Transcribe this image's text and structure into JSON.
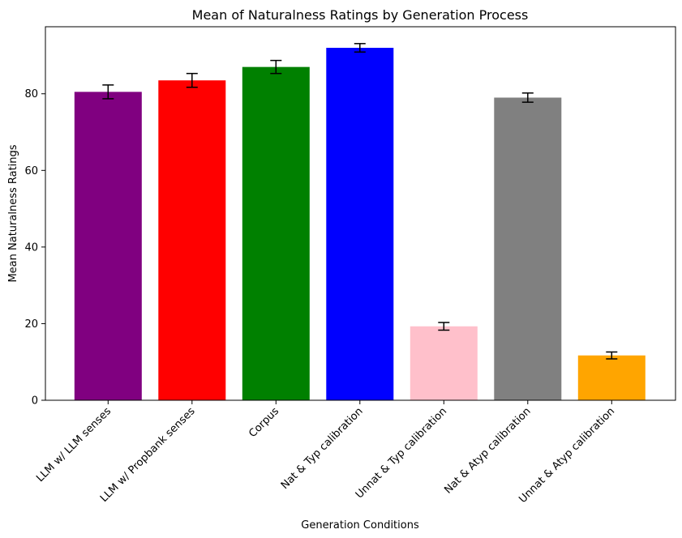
{
  "chart_data": {
    "type": "bar",
    "title": "Mean of Naturalness Ratings by Generation Process",
    "xlabel": "Generation Conditions",
    "ylabel": "Mean Naturalness Ratings",
    "ylim": [
      0,
      97.5
    ],
    "yticks": [
      0,
      20,
      40,
      60,
      80
    ],
    "grid": false,
    "categories": [
      "LLM w/ LLM senses",
      "LLM w/ Propbank senses",
      "Corpus",
      "Nat & Typ calibration",
      "Unnat & Typ calibration",
      "Nat & Atyp calibration",
      "Unnat & Atyp calibration"
    ],
    "values": [
      80.5,
      83.5,
      87.0,
      92.0,
      19.3,
      79.0,
      11.7
    ],
    "errors": [
      1.8,
      1.8,
      1.7,
      1.1,
      1.0,
      1.2,
      0.9
    ],
    "colors": [
      "#800080",
      "#ff0000",
      "#008000",
      "#0000ff",
      "#ffc0cb",
      "#808080",
      "#ffa500"
    ]
  }
}
